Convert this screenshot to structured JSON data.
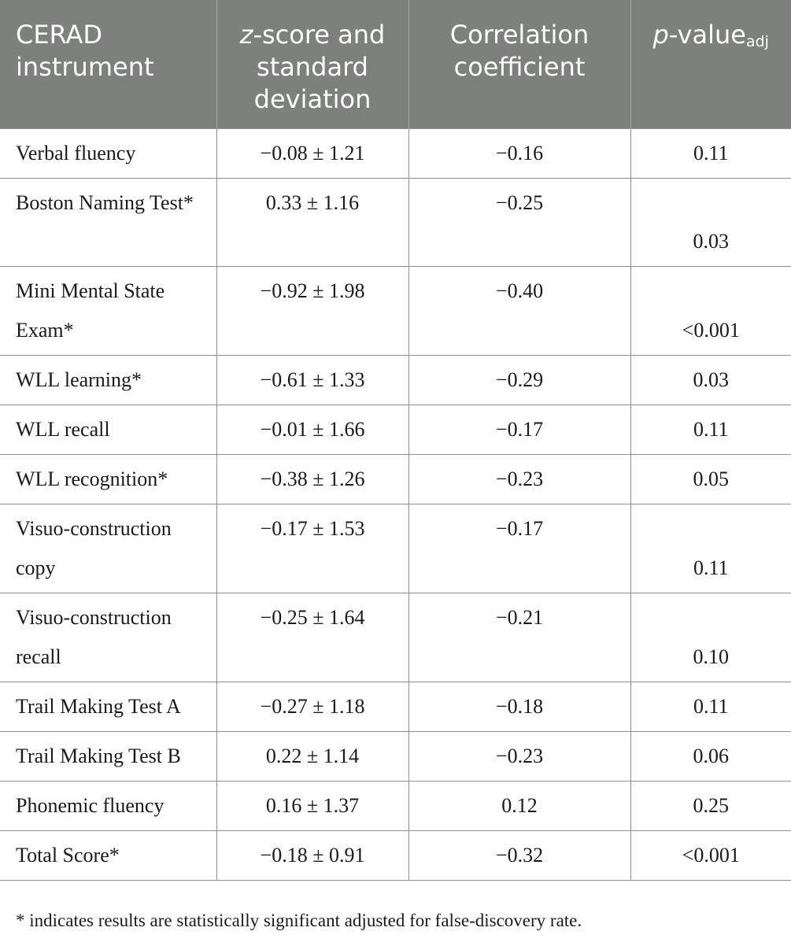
{
  "table": {
    "headers": {
      "instrument": "CERAD instrument",
      "zscore_italic": "z",
      "zscore_rest": "-score and standard deviation",
      "correlation": "Correlation coefficient",
      "pvalue_italic": "p",
      "pvalue_rest": "-value",
      "pvalue_sub": "adj"
    },
    "rows": [
      {
        "instrument": "Verbal fluency",
        "zscore": "−0.08 ± 1.21",
        "correlation": "−0.16",
        "p": "0.11",
        "tall": false
      },
      {
        "instrument": "Boston Naming Test*",
        "zscore": "0.33 ± 1.16",
        "correlation": "−0.25",
        "p": "0.03",
        "tall": true
      },
      {
        "instrument": "Mini Mental State Exam*",
        "zscore": "−0.92 ± 1.98",
        "correlation": "−0.40",
        "p": "<0.001",
        "tall": true
      },
      {
        "instrument": "WLL learning*",
        "zscore": "−0.61 ± 1.33",
        "correlation": "−0.29",
        "p": "0.03",
        "tall": false
      },
      {
        "instrument": "WLL recall",
        "zscore": "−0.01 ± 1.66",
        "correlation": "−0.17",
        "p": "0.11",
        "tall": false
      },
      {
        "instrument": "WLL recognition*",
        "zscore": "−0.38 ± 1.26",
        "correlation": "−0.23",
        "p": "0.05",
        "tall": false
      },
      {
        "instrument": "Visuo-construction copy",
        "zscore": "−0.17 ± 1.53",
        "correlation": "−0.17",
        "p": "0.11",
        "tall": true
      },
      {
        "instrument": "Visuo-construction recall",
        "zscore": "−0.25 ± 1.64",
        "correlation": "−0.21",
        "p": "0.10",
        "tall": true
      },
      {
        "instrument": "Trail Making Test A",
        "zscore": "−0.27 ± 1.18",
        "correlation": "−0.18",
        "p": "0.11",
        "tall": false
      },
      {
        "instrument": "Trail Making Test B",
        "zscore": "0.22 ± 1.14",
        "correlation": "−0.23",
        "p": "0.06",
        "tall": false
      },
      {
        "instrument": "Phonemic fluency",
        "zscore": "0.16 ± 1.37",
        "correlation": "0.12",
        "p": "0.25",
        "tall": false
      },
      {
        "instrument": "Total Score*",
        "zscore": "−0.18 ± 0.91",
        "correlation": "−0.32",
        "p": "<0.001",
        "tall": false
      }
    ]
  },
  "footnote": "* indicates results are statistically significant adjusted for false-discovery rate.",
  "colors": {
    "header_background": "#7e807e",
    "header_text": "#ffffff",
    "grid_line": "#8d8d8d"
  }
}
